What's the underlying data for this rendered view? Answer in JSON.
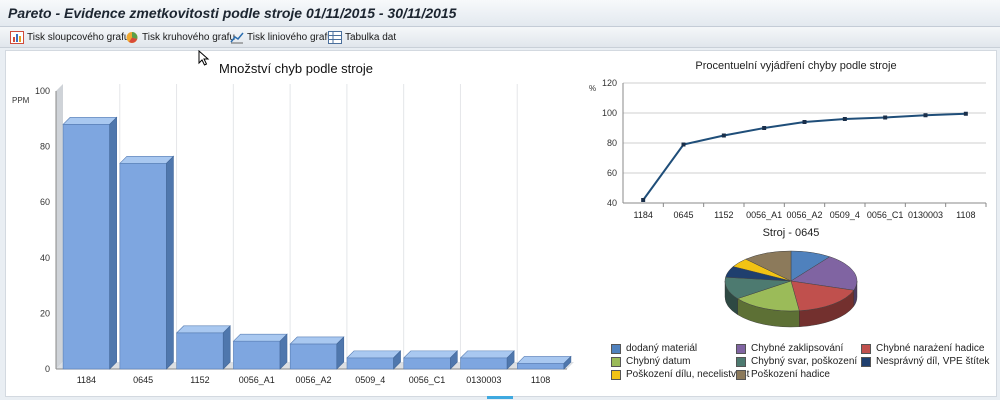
{
  "window": {
    "title": "Pareto - Evidence zmetkovitosti podle stroje 01/11/2015 - 30/11/2015"
  },
  "toolbar": {
    "bar_print": "Tisk sloupcového grafu",
    "pie_print": "Tisk kruhového grafu",
    "line_print": "Tisk liniového grafu",
    "data_table": "Tabulka dat",
    "icons": [
      "bar-chart-icon",
      "pie-chart-icon",
      "line-chart-icon",
      "table-icon"
    ]
  },
  "chart_data": [
    {
      "type": "bar",
      "title": "Množství chyb podle stroje",
      "ylabel": "PPM",
      "xlabel": "",
      "categories": [
        "1184",
        "0645",
        "1152",
        "0056_A1",
        "0056_A2",
        "0509_4",
        "0056_C1",
        "0130003",
        "1108"
      ],
      "values": [
        88,
        74,
        13,
        10,
        9,
        4,
        4,
        4,
        2
      ],
      "ylim": [
        0,
        100
      ],
      "yticks": [
        0,
        20,
        40,
        60,
        80,
        100
      ],
      "grid": "vertical",
      "color": "#7ea6e0"
    },
    {
      "type": "line",
      "title": "Procentuelní vyjádření chyby podle stroje",
      "ylabel": "%",
      "xlabel": "",
      "categories": [
        "1184",
        "0645",
        "1152",
        "0056_A1",
        "0056_A2",
        "0509_4",
        "0056_C1",
        "0130003",
        "1108"
      ],
      "values": [
        42,
        79,
        85,
        90,
        94,
        96,
        97,
        98.5,
        99.5
      ],
      "ylim": [
        40,
        120
      ],
      "yticks": [
        40,
        60,
        80,
        100,
        120
      ],
      "grid": "horizontal",
      "color": "#1f4e79"
    },
    {
      "type": "pie",
      "title": "Stroj - 0645",
      "labels": [
        "dodaný materiál",
        "Chybné zaklipsování",
        "Chybné narażení hadice",
        "Chybný datum",
        "Chybný svar, poškození",
        "Nesprávný díl, VPE štítek",
        "Poškození dílu, necelistvost",
        "Poškození hadice"
      ],
      "values": [
        10,
        20,
        18,
        17,
        12,
        6,
        5,
        12
      ],
      "colors": [
        "#4f81bd",
        "#8064a2",
        "#c0504d",
        "#9bbb59",
        "#4d7a70",
        "#1f3f6e",
        "#f2c314",
        "#8c7a5b"
      ],
      "legend": "bottom"
    }
  ]
}
